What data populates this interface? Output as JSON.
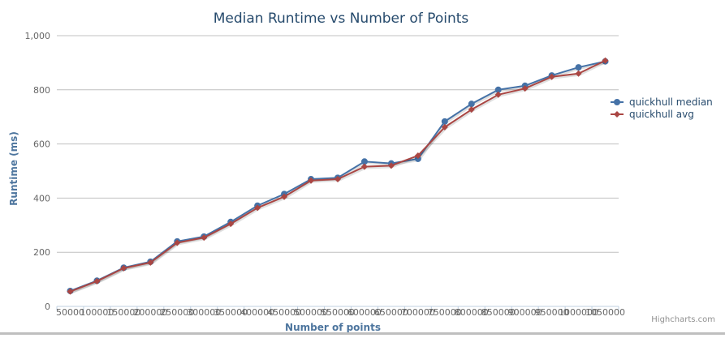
{
  "chart_data": {
    "type": "line",
    "title": "Median Runtime vs Number of Points",
    "xlabel": "Number of points",
    "ylabel": "Runtime (ms)",
    "ylim": [
      0,
      1000
    ],
    "yticks": [
      0,
      200,
      400,
      600,
      800,
      1000
    ],
    "ytick_labels": [
      "0",
      "200",
      "400",
      "600",
      "800",
      "1,000"
    ],
    "grid": true,
    "legend_position": "right",
    "categories": [
      "50000",
      "100000",
      "150000",
      "200000",
      "250000",
      "300000",
      "350000",
      "400000",
      "450000",
      "500000",
      "550000",
      "600000",
      "650000",
      "700000",
      "750000",
      "800000",
      "850000",
      "900000",
      "950000",
      "1000000",
      "1050000"
    ],
    "series": [
      {
        "name": "quickhull median",
        "color": "#4572A7",
        "marker": "circle",
        "values": [
          57,
          95,
          143,
          165,
          240,
          258,
          312,
          372,
          415,
          470,
          475,
          535,
          528,
          545,
          683,
          748,
          800,
          815,
          853,
          883,
          905
        ]
      },
      {
        "name": "quickhull avg",
        "color": "#AA4643",
        "marker": "diamond",
        "values": [
          55,
          93,
          141,
          162,
          235,
          254,
          305,
          364,
          405,
          465,
          470,
          516,
          520,
          557,
          662,
          727,
          782,
          805,
          848,
          860,
          908
        ]
      }
    ]
  },
  "credits": "Highcharts.com"
}
